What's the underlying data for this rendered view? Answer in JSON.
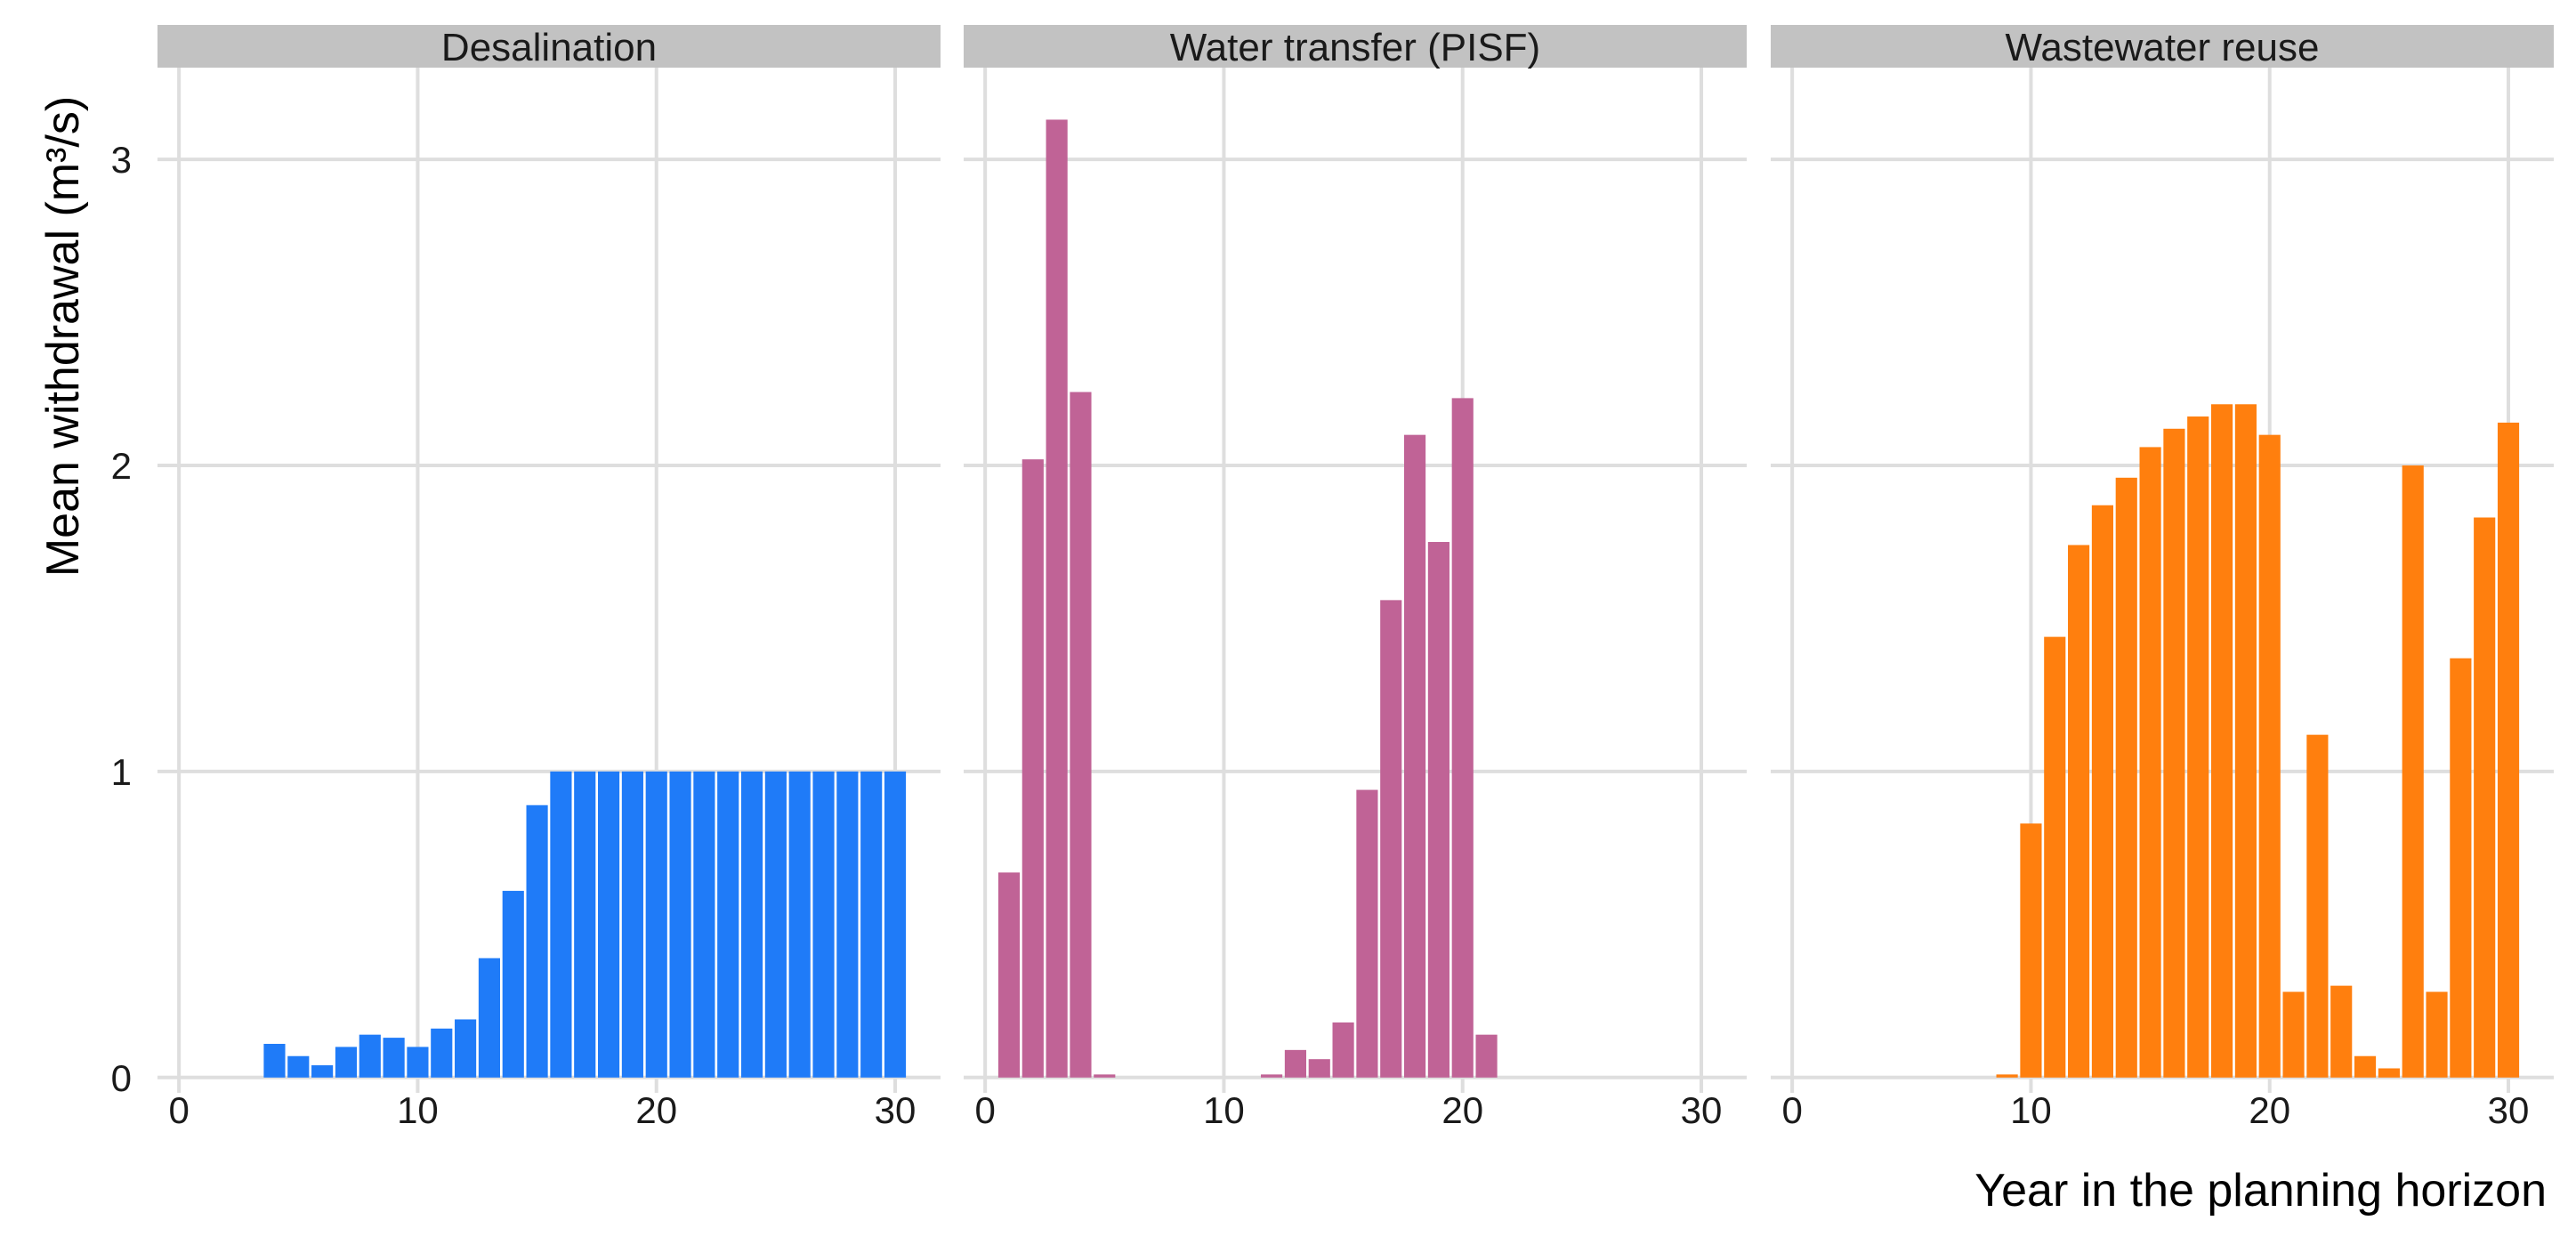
{
  "chart_data": {
    "type": "bar",
    "xlabel": "Year in the planning horizon",
    "ylabel": "Mean withdrawal (m³/s)",
    "xlim": [
      -0.9,
      31.9
    ],
    "ylim": [
      -0.05,
      3.3
    ],
    "x_ticks": [
      0,
      10,
      20,
      30
    ],
    "y_ticks": [
      0,
      1,
      2,
      3
    ],
    "grid": true,
    "x": [
      1,
      2,
      3,
      4,
      5,
      6,
      7,
      8,
      9,
      10,
      11,
      12,
      13,
      14,
      15,
      16,
      17,
      18,
      19,
      20,
      21,
      22,
      23,
      24,
      25,
      26,
      27,
      28,
      29,
      30
    ],
    "panels": [
      {
        "title": "Desalination",
        "color": "#1F7BF8",
        "values": [
          0,
          0,
          0,
          0.11,
          0.07,
          0.04,
          0.1,
          0.14,
          0.13,
          0.1,
          0.16,
          0.19,
          0.39,
          0.61,
          0.89,
          1,
          1,
          1,
          1,
          1,
          1,
          1,
          1,
          1,
          1,
          1,
          1,
          1,
          1,
          1
        ]
      },
      {
        "title": "Water transfer (PISF)",
        "color": "#C06396",
        "values": [
          0.67,
          2.02,
          3.13,
          2.24,
          0.01,
          0,
          0,
          0,
          0,
          0,
          0,
          0.01,
          0.09,
          0.06,
          0.18,
          0.94,
          1.56,
          2.1,
          1.75,
          2.22,
          0.14,
          0,
          0,
          0,
          0,
          0,
          0,
          0,
          0,
          0
        ]
      },
      {
        "title": "Wastewater reuse",
        "color": "#FF7F0E",
        "values": [
          0,
          0,
          0,
          0,
          0,
          0,
          0,
          0,
          0.01,
          0.83,
          1.44,
          1.74,
          1.87,
          1.96,
          2.06,
          2.12,
          2.16,
          2.2,
          2.2,
          2.1,
          0.28,
          1.12,
          0.3,
          0.07,
          0.03,
          2,
          0.28,
          1.37,
          1.83,
          2.14
        ]
      }
    ]
  }
}
